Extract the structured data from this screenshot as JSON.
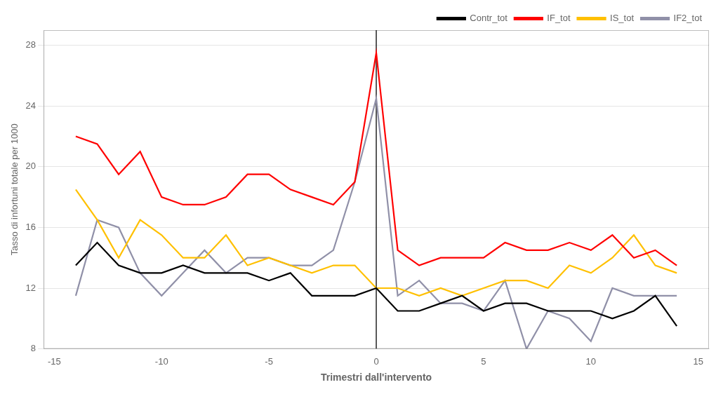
{
  "chart_data": {
    "type": "line",
    "x": [
      -14,
      -13,
      -12,
      -11,
      -10,
      -9,
      -8,
      -7,
      -6,
      -5,
      -4,
      -3,
      -2,
      -1,
      0,
      1,
      2,
      3,
      4,
      5,
      6,
      7,
      8,
      9,
      10,
      11,
      12,
      13,
      14
    ],
    "series": [
      {
        "name": "Contr_tot",
        "color": "#000000",
        "values": [
          13.5,
          15.0,
          13.5,
          13.0,
          13.0,
          13.5,
          13.0,
          13.0,
          13.0,
          12.5,
          13.0,
          11.5,
          11.5,
          11.5,
          12.0,
          10.5,
          10.5,
          11.0,
          11.5,
          10.5,
          11.0,
          11.0,
          10.5,
          10.5,
          10.5,
          10.0,
          10.5,
          11.5,
          9.5
        ]
      },
      {
        "name": "IF_tot",
        "color": "#ff0000",
        "values": [
          22.0,
          21.5,
          19.5,
          21.0,
          18.0,
          17.5,
          17.5,
          18.0,
          19.5,
          19.5,
          18.5,
          18.0,
          17.5,
          19.0,
          27.5,
          14.5,
          13.5,
          14.0,
          14.0,
          14.0,
          15.0,
          14.5,
          14.5,
          15.0,
          14.5,
          15.5,
          14.0,
          14.5,
          13.5
        ]
      },
      {
        "name": "IS_tot",
        "color": "#ffc000",
        "values": [
          18.5,
          16.5,
          14.0,
          16.5,
          15.5,
          14.0,
          14.0,
          15.5,
          13.5,
          14.0,
          13.5,
          13.0,
          13.5,
          13.5,
          12.0,
          12.0,
          11.5,
          12.0,
          11.5,
          12.0,
          12.5,
          12.5,
          12.0,
          13.5,
          13.0,
          14.0,
          15.5,
          13.5,
          13.0
        ]
      },
      {
        "name": "IF2_tot",
        "color": "#9090a8",
        "values": [
          11.5,
          16.5,
          16.0,
          13.0,
          11.5,
          13.0,
          14.5,
          13.0,
          14.0,
          14.0,
          13.5,
          13.5,
          14.5,
          19.0,
          24.5,
          11.5,
          12.5,
          11.0,
          11.0,
          10.5,
          12.5,
          8.0,
          10.5,
          10.0,
          8.5,
          12.0,
          11.5,
          11.5,
          11.5
        ]
      }
    ],
    "xlabel": "Trimestri dall'intervento",
    "ylabel": "Tasso di infortuni totale per 1000",
    "xlim": [
      -15.5,
      15.5
    ],
    "xticks": [
      -15,
      -10,
      -5,
      0,
      5,
      10,
      15
    ],
    "ylim": [
      8,
      29
    ],
    "yticks": [
      8,
      12,
      16,
      20,
      24,
      28
    ],
    "vlines": [
      0
    ],
    "grid": "y",
    "legend": "upper right"
  }
}
